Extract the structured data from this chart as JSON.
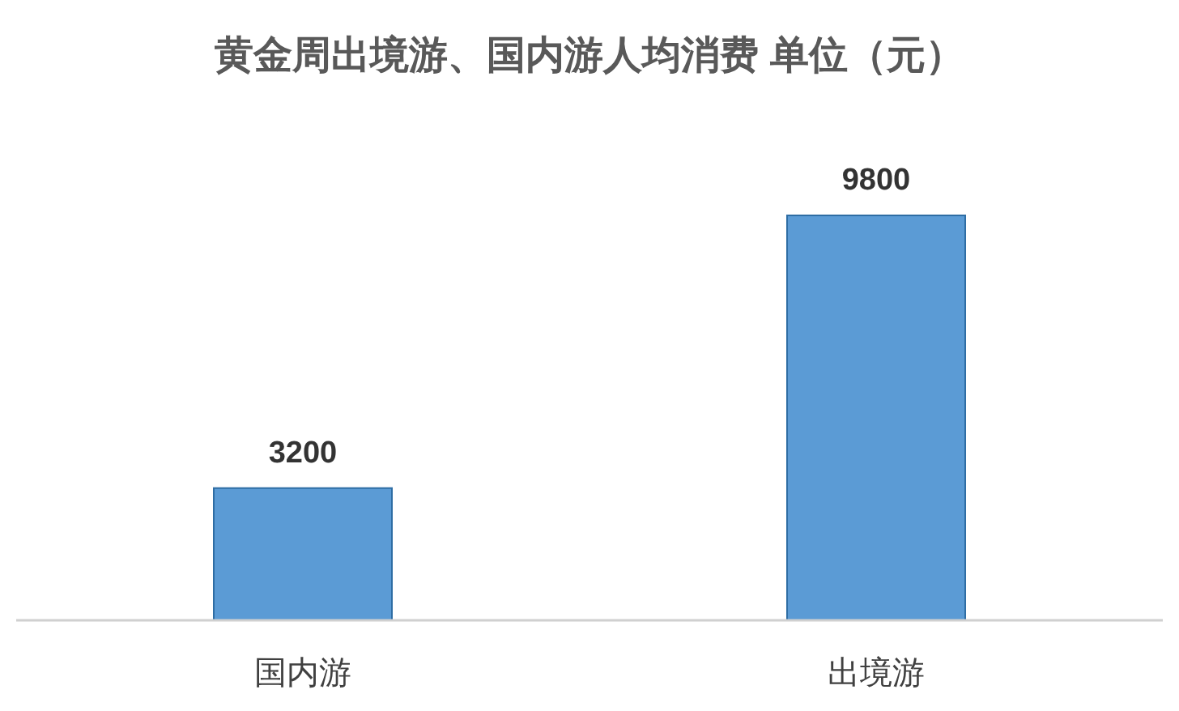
{
  "chart_data": {
    "type": "bar",
    "title": "黄金周出境游、国内游人均消费 单位（元）",
    "categories": [
      "国内游",
      "出境游"
    ],
    "values": [
      3200,
      9800
    ],
    "color": "#5b9bd5",
    "data_labels": true
  }
}
